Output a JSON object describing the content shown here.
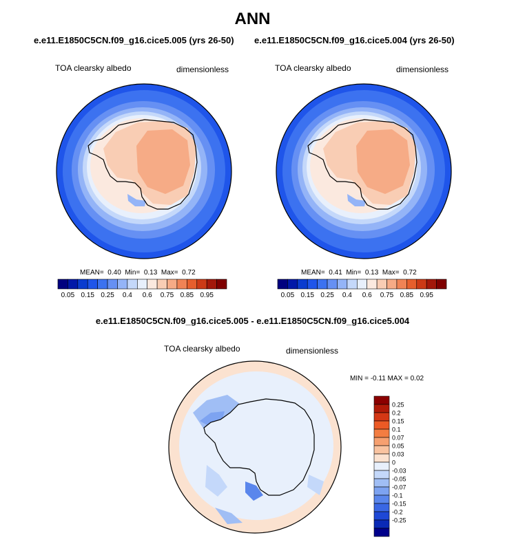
{
  "title": "ANN",
  "panels": [
    {
      "case": "e.e11.E1850C5CN.f09_g16.cice5.005 (yrs 26-50)",
      "variable": "TOA clearsky albedo",
      "units": "dimensionless",
      "stats": {
        "mean_label": "MEAN=",
        "mean": "0.40",
        "min_label": "Min=",
        "min": "0.13",
        "max_label": "Max=",
        "max": "0.72"
      }
    },
    {
      "case": "e.e11.E1850C5CN.f09_g16.cice5.004 (yrs 26-50)",
      "variable": "TOA clearsky albedo",
      "units": "dimensionless",
      "stats": {
        "mean_label": "MEAN=",
        "mean": "0.41",
        "min_label": "Min=",
        "min": "0.13",
        "max_label": "Max=",
        "max": "0.72"
      }
    }
  ],
  "diff": {
    "title": "e.e11.E1850C5CN.f09_g16.cice5.005 - e.e11.E1850C5CN.f09_g16.cice5.004",
    "variable": "TOA clearsky albedo",
    "units": "dimensionless",
    "minmax_text": "MIN = -0.11 MAX =  0.02"
  },
  "chart_data": [
    {
      "type": "heatmap",
      "projection": "south-polar-stereographic",
      "title": "e.e11.E1850C5CN.f09_g16.cice5.005 (yrs 26-50)",
      "variable": "TOA clearsky albedo",
      "units": "dimensionless",
      "mean": 0.4,
      "min": 0.13,
      "max": 0.72,
      "colorbar": {
        "orientation": "horizontal",
        "levels": [
          0.05,
          0.1,
          0.15,
          0.2,
          0.25,
          0.3,
          0.4,
          0.5,
          0.6,
          0.7,
          0.75,
          0.8,
          0.85,
          0.9,
          0.95
        ],
        "tick_labels": [
          "0.05",
          "0.15",
          "0.25",
          "0.4",
          "0.6",
          "0.75",
          "0.85",
          "0.95"
        ],
        "colors": [
          "#00007f",
          "#0018a8",
          "#0a3ccf",
          "#1f55ea",
          "#3c72f0",
          "#6690f3",
          "#94b4f7",
          "#c4d8fa",
          "#e8f0fc",
          "#fbe9df",
          "#f9cdb4",
          "#f6ab86",
          "#f08355",
          "#e65f2d",
          "#cc3a16",
          "#a3180a",
          "#7f0000"
        ]
      }
    },
    {
      "type": "heatmap",
      "projection": "south-polar-stereographic",
      "title": "e.e11.E1850C5CN.f09_g16.cice5.004 (yrs 26-50)",
      "variable": "TOA clearsky albedo",
      "units": "dimensionless",
      "mean": 0.41,
      "min": 0.13,
      "max": 0.72,
      "colorbar": {
        "orientation": "horizontal",
        "levels": [
          0.05,
          0.1,
          0.15,
          0.2,
          0.25,
          0.3,
          0.4,
          0.5,
          0.6,
          0.7,
          0.75,
          0.8,
          0.85,
          0.9,
          0.95
        ],
        "tick_labels": [
          "0.05",
          "0.15",
          "0.25",
          "0.4",
          "0.6",
          "0.75",
          "0.85",
          "0.95"
        ],
        "colors": [
          "#00007f",
          "#0018a8",
          "#0a3ccf",
          "#1f55ea",
          "#3c72f0",
          "#6690f3",
          "#94b4f7",
          "#c4d8fa",
          "#e8f0fc",
          "#fbe9df",
          "#f9cdb4",
          "#f6ab86",
          "#f08355",
          "#e65f2d",
          "#cc3a16",
          "#a3180a",
          "#7f0000"
        ]
      }
    },
    {
      "type": "heatmap",
      "projection": "south-polar-stereographic",
      "title": "e.e11.E1850C5CN.f09_g16.cice5.005 - e.e11.E1850C5CN.f09_g16.cice5.004",
      "variable": "TOA clearsky albedo",
      "units": "dimensionless",
      "min": -0.11,
      "max": 0.02,
      "colorbar": {
        "orientation": "vertical",
        "tick_labels": [
          "0.25",
          "0.2",
          "0.15",
          "0.1",
          "0.07",
          "0.05",
          "0.03",
          "0",
          "-0.03",
          "-0.05",
          "-0.07",
          "-0.1",
          "-0.15",
          "-0.2",
          "-0.25"
        ],
        "colors": [
          "#8b0000",
          "#b01a08",
          "#d43715",
          "#ec5a25",
          "#f37d42",
          "#f6a070",
          "#f9c3a0",
          "#fbe2d0",
          "#e8f0fc",
          "#c4d8fa",
          "#a0bef5",
          "#7da3f1",
          "#5a86ec",
          "#3a67e4",
          "#1e48d6",
          "#0a2ab6",
          "#00008b"
        ]
      }
    }
  ]
}
